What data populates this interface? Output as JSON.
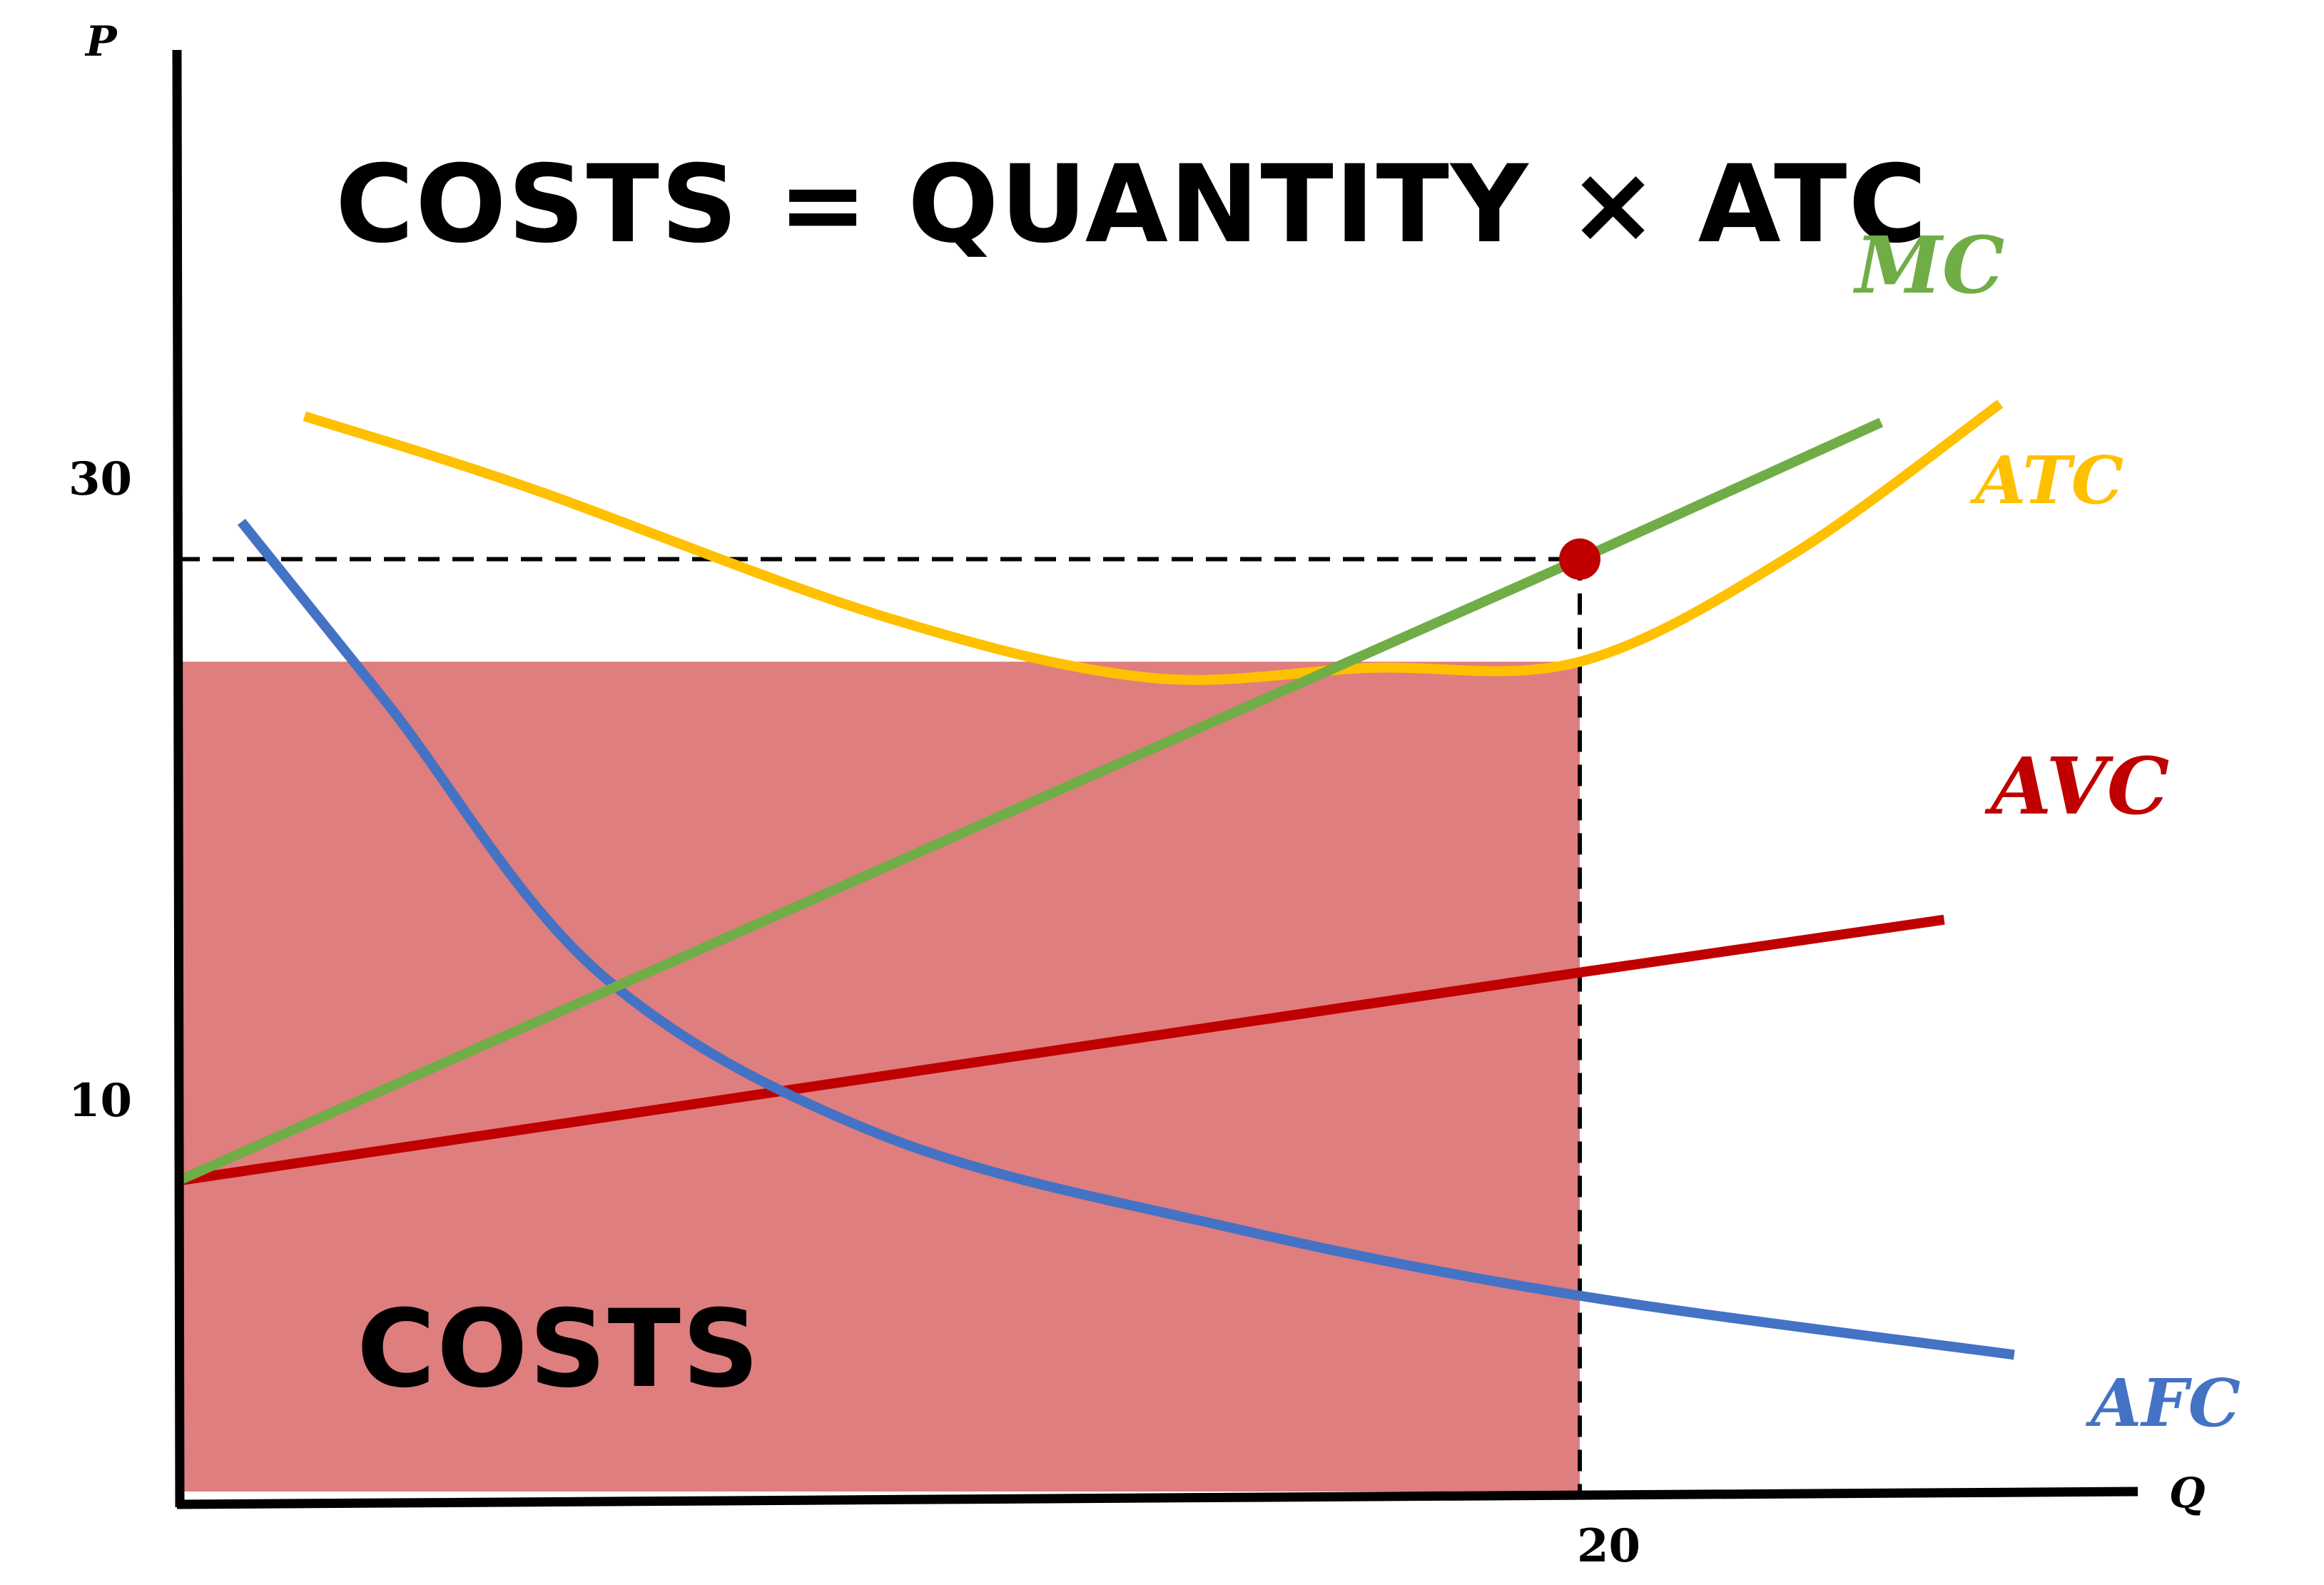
{
  "chart_data": {
    "type": "line",
    "title": "COSTS = QUANTITY × ATC",
    "xlabel": "Q",
    "ylabel": "P",
    "xlim": [
      0,
      30
    ],
    "ylim": [
      0,
      40
    ],
    "x_ticks": [
      {
        "value": 20,
        "label": "20"
      }
    ],
    "y_ticks": [
      {
        "value": 10,
        "label": "10"
      },
      {
        "value": 30,
        "label": "30"
      }
    ],
    "shaded_region": {
      "label": "COSTS",
      "x_range": [
        0,
        20
      ],
      "y_range": [
        0,
        26.7
      ],
      "color": "#df7e7e"
    },
    "highlight_point": {
      "x": 20,
      "y": 30,
      "color": "#c00000"
    },
    "reference_lines": [
      {
        "from": [
          0,
          30
        ],
        "to": [
          20,
          30
        ],
        "style": "dashed"
      },
      {
        "from": [
          20,
          30
        ],
        "to": [
          20,
          0
        ],
        "style": "dashed"
      }
    ],
    "series": [
      {
        "name": "MC",
        "color": "#70ad47",
        "x": [
          0,
          20,
          24.3
        ],
        "y": [
          10,
          30,
          34.4
        ]
      },
      {
        "name": "ATC",
        "color": "#ffc000",
        "x": [
          1.8,
          5,
          10,
          13.8,
          17,
          20,
          23,
          26
        ],
        "y": [
          34.6,
          32.3,
          28.2,
          26.2,
          26.5,
          26.7,
          30.1,
          35
        ]
      },
      {
        "name": "AVC",
        "color": "#c00000",
        "x": [
          0,
          20,
          25.2
        ],
        "y": [
          10,
          16.7,
          18.4
        ]
      },
      {
        "name": "AFC",
        "color": "#4472c4",
        "x": [
          0.9,
          3,
          6,
          10,
          15,
          20,
          26.2
        ],
        "y": [
          31.2,
          25.3,
          16.7,
          11.5,
          8.5,
          6.3,
          4.4
        ]
      }
    ]
  }
}
